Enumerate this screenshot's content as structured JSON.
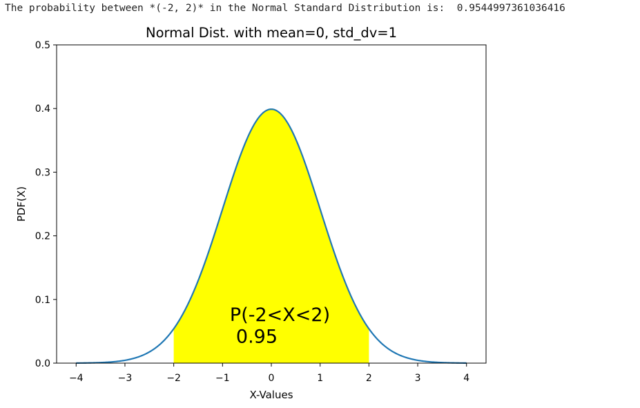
{
  "output": {
    "message": "The probability between *(-2, 2)* in the Normal Standard Distribution is:",
    "value": "0.9544997361036416"
  },
  "chart_data": {
    "type": "area",
    "title": "Normal Dist. with mean=0, std_dv=1",
    "xlabel": "X-Values",
    "ylabel": "PDF(X)",
    "mean": 0,
    "std_dv": 1,
    "xlim": [
      -4.4,
      4.4
    ],
    "ylim": [
      0,
      0.5
    ],
    "curve_range": [
      -4,
      4
    ],
    "xticks": [
      -4,
      -3,
      -2,
      -1,
      0,
      1,
      2,
      3,
      4
    ],
    "xtick_labels": [
      "−4",
      "−3",
      "−2",
      "−1",
      "0",
      "1",
      "2",
      "3",
      "4"
    ],
    "yticks": [
      0.0,
      0.1,
      0.2,
      0.3,
      0.4,
      0.5
    ],
    "ytick_labels": [
      "0.0",
      "0.1",
      "0.2",
      "0.3",
      "0.4",
      "0.5"
    ],
    "fill_range": [
      -2,
      2
    ],
    "fill_color": "#ffff00",
    "line_color": "#1f77b4",
    "annotation": {
      "line1": "P(-2<X<2)",
      "line2": "0.95",
      "x": -0.85,
      "y1": 0.066,
      "y2": 0.032
    }
  }
}
